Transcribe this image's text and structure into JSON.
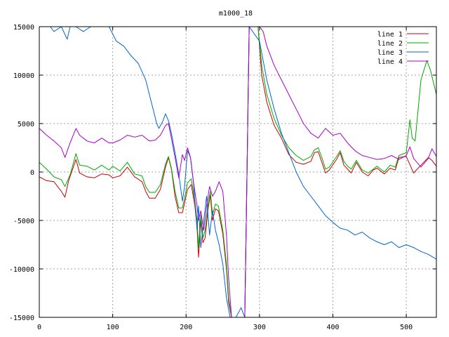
{
  "chart_data": {
    "type": "line",
    "title": "m1000_18",
    "xlabel": "",
    "ylabel": "",
    "xlim": [
      0,
      541
    ],
    "ylim": [
      -15000,
      15000
    ],
    "x_ticks": [
      0,
      100,
      200,
      300,
      400,
      500
    ],
    "y_ticks": [
      -15000,
      -10000,
      -5000,
      0,
      5000,
      10000,
      15000
    ],
    "x_tick_labels": [
      "0",
      "100",
      "200",
      "300",
      "400",
      "500"
    ],
    "y_tick_labels": [
      "-15000",
      "-10000",
      "-5000",
      "0",
      "5000",
      "10000",
      "15000"
    ],
    "grid": true,
    "legend_position": "top-right",
    "series": [
      {
        "name": "line 1",
        "color": "#cc0000",
        "points": [
          [
            0,
            -500
          ],
          [
            10,
            -900
          ],
          [
            20,
            -1000
          ],
          [
            30,
            -2000
          ],
          [
            35,
            -2600
          ],
          [
            40,
            -900
          ],
          [
            50,
            1300
          ],
          [
            55,
            -100
          ],
          [
            65,
            -500
          ],
          [
            75,
            -600
          ],
          [
            85,
            -200
          ],
          [
            95,
            -300
          ],
          [
            100,
            -600
          ],
          [
            110,
            -400
          ],
          [
            120,
            500
          ],
          [
            130,
            -500
          ],
          [
            140,
            -1000
          ],
          [
            145,
            -2000
          ],
          [
            150,
            -2700
          ],
          [
            158,
            -2700
          ],
          [
            165,
            -1800
          ],
          [
            172,
            500
          ],
          [
            176,
            1500
          ],
          [
            180,
            300
          ],
          [
            185,
            -2500
          ],
          [
            190,
            -4200
          ],
          [
            195,
            -4200
          ],
          [
            198,
            -3200
          ],
          [
            202,
            -1800
          ],
          [
            207,
            -1300
          ],
          [
            212,
            -3500
          ],
          [
            215,
            -5800
          ],
          [
            217,
            -8800
          ],
          [
            220,
            -5000
          ],
          [
            223,
            -7300
          ],
          [
            226,
            -6800
          ],
          [
            230,
            -3800
          ],
          [
            233,
            -2400
          ],
          [
            236,
            -5000
          ],
          [
            240,
            -3800
          ],
          [
            244,
            -4000
          ],
          [
            250,
            -6400
          ],
          [
            255,
            -10000
          ],
          [
            258,
            -13500
          ],
          [
            262,
            -15000
          ],
          [
            280,
            -15000
          ],
          [
            283,
            0
          ],
          [
            286,
            15000
          ],
          [
            298,
            15000
          ],
          [
            303,
            10000
          ],
          [
            310,
            7200
          ],
          [
            320,
            4800
          ],
          [
            330,
            3500
          ],
          [
            340,
            1800
          ],
          [
            350,
            1000
          ],
          [
            360,
            800
          ],
          [
            370,
            1100
          ],
          [
            375,
            2000
          ],
          [
            380,
            2100
          ],
          [
            385,
            1000
          ],
          [
            390,
            -100
          ],
          [
            395,
            200
          ],
          [
            405,
            1300
          ],
          [
            410,
            2000
          ],
          [
            415,
            700
          ],
          [
            420,
            300
          ],
          [
            425,
            -100
          ],
          [
            432,
            1000
          ],
          [
            440,
            0
          ],
          [
            448,
            -400
          ],
          [
            455,
            200
          ],
          [
            460,
            400
          ],
          [
            470,
            -200
          ],
          [
            478,
            400
          ],
          [
            485,
            200
          ],
          [
            490,
            1500
          ],
          [
            500,
            1600
          ],
          [
            510,
            -100
          ],
          [
            520,
            700
          ],
          [
            530,
            1500
          ],
          [
            535,
            1200
          ],
          [
            541,
            600
          ]
        ]
      },
      {
        "name": "line 2",
        "color": "#00aa00",
        "points": [
          [
            0,
            1000
          ],
          [
            10,
            300
          ],
          [
            20,
            -500
          ],
          [
            30,
            -800
          ],
          [
            35,
            -1500
          ],
          [
            42,
            -300
          ],
          [
            50,
            1900
          ],
          [
            55,
            700
          ],
          [
            65,
            600
          ],
          [
            75,
            200
          ],
          [
            85,
            700
          ],
          [
            95,
            200
          ],
          [
            100,
            600
          ],
          [
            110,
            100
          ],
          [
            120,
            1000
          ],
          [
            130,
            -200
          ],
          [
            140,
            -400
          ],
          [
            145,
            -1500
          ],
          [
            150,
            -2100
          ],
          [
            158,
            -2100
          ],
          [
            165,
            -1300
          ],
          [
            172,
            800
          ],
          [
            176,
            1600
          ],
          [
            180,
            400
          ],
          [
            185,
            -2000
          ],
          [
            190,
            -3700
          ],
          [
            195,
            -3700
          ],
          [
            198,
            -2700
          ],
          [
            202,
            -1100
          ],
          [
            207,
            -700
          ],
          [
            212,
            -3000
          ],
          [
            215,
            -5000
          ],
          [
            217,
            -7800
          ],
          [
            220,
            -4400
          ],
          [
            223,
            -6800
          ],
          [
            226,
            -6000
          ],
          [
            230,
            -3300
          ],
          [
            233,
            -2000
          ],
          [
            236,
            -4400
          ],
          [
            240,
            -3300
          ],
          [
            244,
            -3500
          ],
          [
            250,
            -6000
          ],
          [
            255,
            -9500
          ],
          [
            258,
            -13000
          ],
          [
            262,
            -15000
          ],
          [
            280,
            -15000
          ],
          [
            283,
            0
          ],
          [
            286,
            15000
          ],
          [
            298,
            15000
          ],
          [
            303,
            11000
          ],
          [
            310,
            8000
          ],
          [
            320,
            5500
          ],
          [
            330,
            3800
          ],
          [
            340,
            2500
          ],
          [
            350,
            1700
          ],
          [
            360,
            1200
          ],
          [
            370,
            1600
          ],
          [
            375,
            2300
          ],
          [
            380,
            2500
          ],
          [
            385,
            1500
          ],
          [
            390,
            300
          ],
          [
            395,
            500
          ],
          [
            405,
            1600
          ],
          [
            410,
            2200
          ],
          [
            415,
            1100
          ],
          [
            420,
            600
          ],
          [
            425,
            300
          ],
          [
            432,
            1200
          ],
          [
            440,
            200
          ],
          [
            448,
            -100
          ],
          [
            455,
            300
          ],
          [
            460,
            600
          ],
          [
            470,
            0
          ],
          [
            478,
            700
          ],
          [
            485,
            500
          ],
          [
            490,
            1700
          ],
          [
            500,
            2000
          ],
          [
            505,
            5400
          ],
          [
            508,
            3500
          ],
          [
            512,
            3200
          ],
          [
            520,
            9500
          ],
          [
            528,
            11500
          ],
          [
            533,
            10500
          ],
          [
            541,
            8000
          ]
        ]
      },
      {
        "name": "line 3",
        "color": "#0066cc",
        "points": [
          [
            0,
            15000
          ],
          [
            15,
            15000
          ],
          [
            20,
            14500
          ],
          [
            30,
            15000
          ],
          [
            35,
            14200
          ],
          [
            38,
            13700
          ],
          [
            42,
            15000
          ],
          [
            50,
            15000
          ],
          [
            60,
            14500
          ],
          [
            70,
            15000
          ],
          [
            85,
            15000
          ],
          [
            95,
            15000
          ],
          [
            105,
            13500
          ],
          [
            115,
            13000
          ],
          [
            125,
            12000
          ],
          [
            135,
            11200
          ],
          [
            145,
            9500
          ],
          [
            150,
            8000
          ],
          [
            155,
            6500
          ],
          [
            160,
            5000
          ],
          [
            163,
            4500
          ],
          [
            168,
            5200
          ],
          [
            172,
            6000
          ],
          [
            176,
            5300
          ],
          [
            180,
            4000
          ],
          [
            185,
            2000
          ],
          [
            190,
            -200
          ],
          [
            195,
            -3000
          ],
          [
            198,
            -1500
          ],
          [
            202,
            2200
          ],
          [
            206,
            1500
          ],
          [
            210,
            -1000
          ],
          [
            215,
            -6000
          ],
          [
            217,
            -3500
          ],
          [
            220,
            -7800
          ],
          [
            224,
            -5000
          ],
          [
            228,
            -2500
          ],
          [
            232,
            -6500
          ],
          [
            236,
            -4000
          ],
          [
            240,
            -6000
          ],
          [
            245,
            -7500
          ],
          [
            250,
            -9500
          ],
          [
            255,
            -13000
          ],
          [
            260,
            -15000
          ],
          [
            268,
            -15000
          ],
          [
            275,
            -14000
          ],
          [
            280,
            -15000
          ],
          [
            283,
            0
          ],
          [
            286,
            15000
          ],
          [
            300,
            13500
          ],
          [
            305,
            11500
          ],
          [
            310,
            9500
          ],
          [
            320,
            6500
          ],
          [
            330,
            4000
          ],
          [
            340,
            2000
          ],
          [
            350,
            0
          ],
          [
            360,
            -1500
          ],
          [
            370,
            -2500
          ],
          [
            380,
            -3500
          ],
          [
            390,
            -4500
          ],
          [
            400,
            -5200
          ],
          [
            410,
            -5800
          ],
          [
            420,
            -6000
          ],
          [
            430,
            -6500
          ],
          [
            440,
            -6200
          ],
          [
            450,
            -6800
          ],
          [
            460,
            -7200
          ],
          [
            470,
            -7500
          ],
          [
            480,
            -7200
          ],
          [
            490,
            -7800
          ],
          [
            500,
            -7500
          ],
          [
            510,
            -7800
          ],
          [
            520,
            -8200
          ],
          [
            530,
            -8500
          ],
          [
            541,
            -9000
          ]
        ]
      },
      {
        "name": "line 4",
        "color": "#aa00cc",
        "points": [
          [
            0,
            4500
          ],
          [
            10,
            3800
          ],
          [
            20,
            3200
          ],
          [
            30,
            2500
          ],
          [
            35,
            1500
          ],
          [
            42,
            3000
          ],
          [
            50,
            4500
          ],
          [
            55,
            3800
          ],
          [
            65,
            3200
          ],
          [
            75,
            3000
          ],
          [
            85,
            3500
          ],
          [
            95,
            3000
          ],
          [
            100,
            3000
          ],
          [
            110,
            3300
          ],
          [
            120,
            3800
          ],
          [
            130,
            3600
          ],
          [
            140,
            3800
          ],
          [
            150,
            3200
          ],
          [
            158,
            3300
          ],
          [
            165,
            3800
          ],
          [
            172,
            4800
          ],
          [
            176,
            5000
          ],
          [
            180,
            3500
          ],
          [
            185,
            1500
          ],
          [
            190,
            -600
          ],
          [
            195,
            1800
          ],
          [
            198,
            1200
          ],
          [
            202,
            2500
          ],
          [
            206,
            1500
          ],
          [
            210,
            -1000
          ],
          [
            215,
            -3500
          ],
          [
            217,
            -5000
          ],
          [
            220,
            -4000
          ],
          [
            224,
            -6000
          ],
          [
            228,
            -3500
          ],
          [
            232,
            -1500
          ],
          [
            236,
            -2500
          ],
          [
            240,
            -2000
          ],
          [
            245,
            -1000
          ],
          [
            250,
            -2000
          ],
          [
            255,
            -6500
          ],
          [
            258,
            -11000
          ],
          [
            262,
            -15000
          ],
          [
            280,
            -15000
          ],
          [
            283,
            0
          ],
          [
            286,
            15000
          ],
          [
            300,
            15000
          ],
          [
            305,
            14500
          ],
          [
            310,
            13000
          ],
          [
            320,
            11000
          ],
          [
            330,
            9500
          ],
          [
            340,
            8000
          ],
          [
            350,
            6500
          ],
          [
            360,
            5000
          ],
          [
            370,
            4000
          ],
          [
            380,
            3500
          ],
          [
            390,
            4500
          ],
          [
            400,
            3800
          ],
          [
            410,
            4000
          ],
          [
            420,
            3000
          ],
          [
            430,
            2200
          ],
          [
            440,
            1700
          ],
          [
            450,
            1500
          ],
          [
            460,
            1300
          ],
          [
            470,
            1400
          ],
          [
            480,
            1700
          ],
          [
            490,
            1300
          ],
          [
            500,
            1700
          ],
          [
            505,
            2600
          ],
          [
            510,
            1400
          ],
          [
            520,
            500
          ],
          [
            530,
            1400
          ],
          [
            535,
            2400
          ],
          [
            541,
            1600
          ]
        ]
      }
    ]
  }
}
